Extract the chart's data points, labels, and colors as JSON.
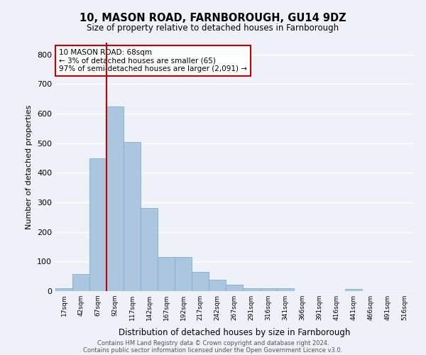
{
  "title": "10, MASON ROAD, FARNBOROUGH, GU14 9DZ",
  "subtitle": "Size of property relative to detached houses in Farnborough",
  "xlabel": "Distribution of detached houses by size in Farnborough",
  "ylabel": "Number of detached properties",
  "categories": [
    "17sqm",
    "42sqm",
    "67sqm",
    "92sqm",
    "117sqm",
    "142sqm",
    "167sqm",
    "192sqm",
    "217sqm",
    "242sqm",
    "267sqm",
    "291sqm",
    "316sqm",
    "341sqm",
    "366sqm",
    "391sqm",
    "416sqm",
    "441sqm",
    "466sqm",
    "491sqm",
    "516sqm"
  ],
  "values": [
    10,
    58,
    450,
    625,
    503,
    280,
    115,
    115,
    65,
    38,
    22,
    10,
    9,
    9,
    0,
    0,
    0,
    7,
    0,
    0,
    0
  ],
  "bar_color": "#adc6e0",
  "bar_edge_color": "#7aafd4",
  "vline_index": 2,
  "annotation_text": "10 MASON ROAD: 68sqm\n← 3% of detached houses are smaller (65)\n97% of semi-detached houses are larger (2,091) →",
  "annotation_box_color": "#ffffff",
  "annotation_box_edge": "#cc0000",
  "vline_color": "#cc0000",
  "ylim": [
    0,
    840
  ],
  "yticks": [
    0,
    100,
    200,
    300,
    400,
    500,
    600,
    700,
    800
  ],
  "background_color": "#eef2f8",
  "grid_color": "#ffffff",
  "footer_line1": "Contains HM Land Registry data © Crown copyright and database right 2024.",
  "footer_line2": "Contains public sector information licensed under the Open Government Licence v3.0."
}
